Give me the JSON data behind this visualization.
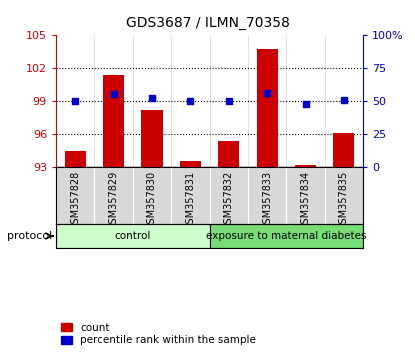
{
  "title": "GDS3687 / ILMN_70358",
  "samples": [
    "GSM357828",
    "GSM357829",
    "GSM357830",
    "GSM357831",
    "GSM357832",
    "GSM357833",
    "GSM357834",
    "GSM357835"
  ],
  "counts": [
    94.4,
    101.4,
    98.2,
    93.5,
    95.3,
    103.8,
    93.1,
    96.1
  ],
  "percentile_ranks": [
    50,
    55,
    52,
    50,
    50,
    56,
    48,
    51
  ],
  "ylim_left": [
    93,
    105
  ],
  "ylim_right": [
    0,
    100
  ],
  "yticks_left": [
    93,
    96,
    99,
    102,
    105
  ],
  "yticks_right": [
    0,
    25,
    50,
    75,
    100
  ],
  "ytick_labels_right": [
    "0",
    "25",
    "50",
    "75",
    "100%"
  ],
  "bar_color": "#cc0000",
  "dot_color": "#0000cc",
  "protocol_groups": [
    {
      "label": "control",
      "count": 4,
      "color": "#ccffcc"
    },
    {
      "label": "exposure to maternal diabetes",
      "count": 4,
      "color": "#77dd77"
    }
  ],
  "legend_items": [
    {
      "label": "count",
      "color": "#cc0000"
    },
    {
      "label": "percentile rank within the sample",
      "color": "#0000cc"
    }
  ],
  "left_axis_color": "#cc0000",
  "right_axis_color": "#0000cc",
  "protocol_label": "protocol",
  "bar_width": 0.55,
  "background_color": "#ffffff",
  "xtick_bg_color": "#d8d8d8",
  "gridline_ticks": [
    96,
    99,
    102
  ]
}
